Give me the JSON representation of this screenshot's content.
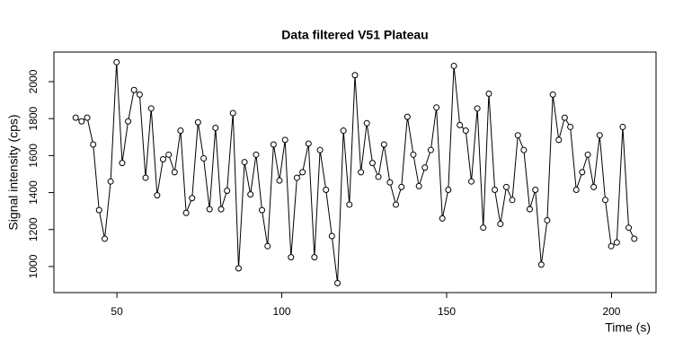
{
  "chart_data": {
    "type": "line",
    "title": "Data filtered V51 Plateau",
    "x_label": "Time (s)",
    "y_label": "Signal intensity (cps)",
    "x": [
      37.5,
      39.3,
      41.0,
      42.8,
      44.6,
      46.3,
      48.1,
      49.9,
      51.6,
      53.4,
      55.2,
      56.9,
      58.7,
      60.4,
      62.2,
      64.0,
      65.7,
      67.5,
      69.3,
      71.0,
      72.8,
      74.6,
      76.3,
      78.1,
      79.9,
      81.6,
      83.4,
      85.2,
      86.9,
      88.7,
      90.5,
      92.2,
      94.0,
      95.7,
      97.5,
      99.3,
      101.0,
      102.8,
      104.6,
      106.3,
      108.1,
      109.9,
      111.6,
      113.4,
      115.2,
      116.9,
      118.7,
      120.5,
      122.2,
      124.0,
      125.8,
      127.5,
      129.3,
      131.0,
      132.8,
      134.6,
      136.3,
      138.1,
      139.9,
      141.6,
      143.4,
      145.2,
      146.9,
      148.7,
      150.5,
      152.2,
      154.0,
      155.8,
      157.5,
      159.3,
      161.1,
      162.8,
      164.6,
      166.3,
      168.1,
      169.9,
      171.6,
      173.4,
      175.2,
      176.9,
      178.7,
      180.5,
      182.2,
      184.0,
      185.8,
      187.5,
      189.3,
      191.1,
      192.8,
      194.6,
      196.4,
      198.1,
      199.9,
      201.6,
      203.4,
      205.2,
      206.9
    ],
    "series": [
      {
        "name": "V51",
        "color": "#000000",
        "values": [
          1805,
          1785,
          1805,
          1660,
          1305,
          1150,
          1460,
          2105,
          1560,
          1785,
          1955,
          1930,
          1480,
          1855,
          1385,
          1580,
          1605,
          1510,
          1735,
          1290,
          1370,
          1780,
          1585,
          1310,
          1750,
          1310,
          1410,
          1830,
          990,
          1565,
          1390,
          1605,
          1305,
          1110,
          1660,
          1465,
          1685,
          1050,
          1480,
          1510,
          1665,
          1050,
          1630,
          1415,
          1165,
          910,
          1735,
          1335,
          2035,
          1510,
          1775,
          1560,
          1485,
          1660,
          1455,
          1335,
          1430,
          1810,
          1605,
          1435,
          1535,
          1630,
          1860,
          1260,
          1415,
          2085,
          1765,
          1735,
          1460,
          1855,
          1210,
          1935,
          1415,
          1230,
          1430,
          1360,
          1710,
          1630,
          1310,
          1415,
          1010,
          1250,
          1930,
          1685,
          1805,
          1755,
          1415,
          1510,
          1605,
          1430,
          1710,
          1360,
          1110,
          1130,
          1755,
          1210,
          1150
        ]
      }
    ],
    "xlim": [
      30.9,
      213.5
    ],
    "ylim": [
      859,
      2160
    ],
    "xticks": [
      50,
      100,
      150,
      200
    ],
    "yticks": [
      1000,
      1200,
      1400,
      1600,
      1800,
      2000
    ]
  }
}
